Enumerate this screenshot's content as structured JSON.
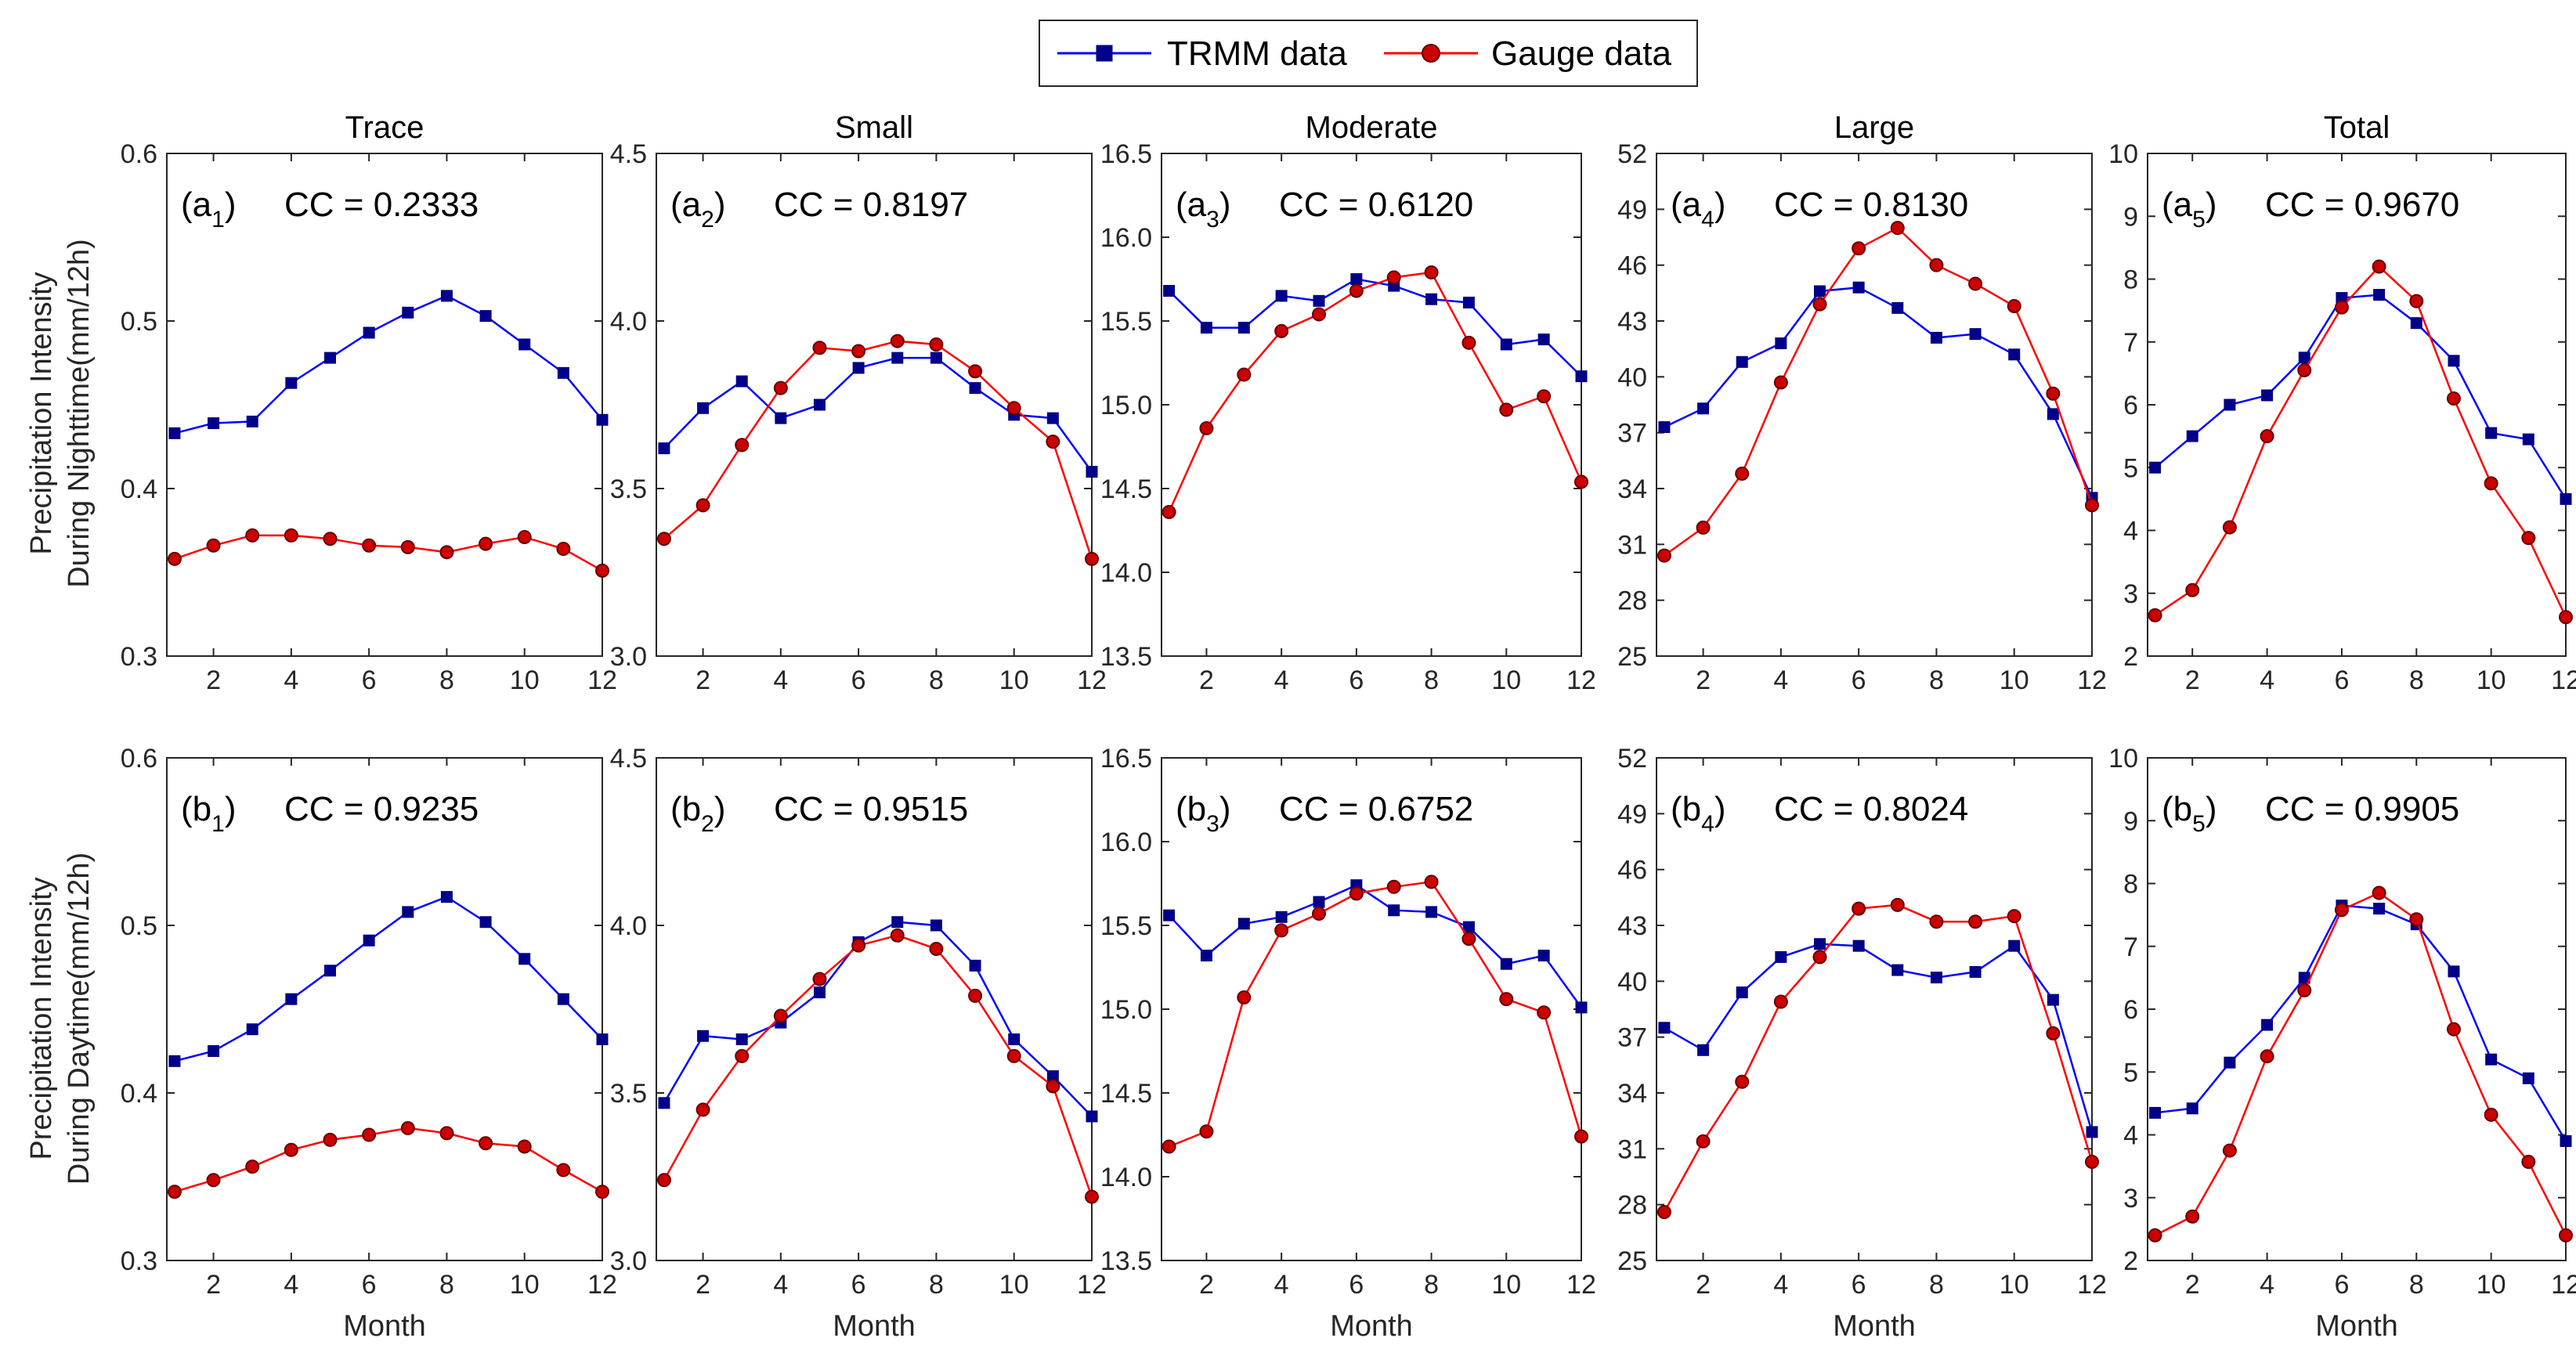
{
  "legend": {
    "trmm_label": "TRMM data",
    "gauge_label": "Gauge data"
  },
  "row_labels": [
    [
      "Precipitation Intensity",
      "During Nighttime(mm/12h)"
    ],
    [
      "Precipitation Intensity",
      "During Daytime(mm/12h)"
    ]
  ],
  "xlabel": "Month",
  "chart_data": {
    "type": "line",
    "categories": [
      1,
      2,
      3,
      4,
      5,
      6,
      7,
      8,
      9,
      10,
      11,
      12
    ],
    "x_ticks": [
      2,
      4,
      6,
      8,
      10,
      12
    ],
    "xlim": [
      0.8,
      12
    ],
    "series_names": [
      "TRMM data",
      "Gauge data"
    ],
    "colors": {
      "trmm": "#0000ff",
      "trmm_marker": "#00008b",
      "gauge": "#ff0000",
      "gauge_marker": "#cc0000"
    },
    "panels": [
      {
        "row": 0,
        "col": 0,
        "title": "Trace",
        "label_base": "a",
        "label_sub": "1",
        "cc": "CC = 0.2333",
        "ylim": [
          0.3,
          0.6
        ],
        "yticks": [
          "0.3",
          "0.4",
          "0.5",
          "0.6"
        ],
        "series": [
          {
            "name": "TRMM data",
            "values": [
              0.433,
              0.439,
              0.44,
              0.463,
              0.478,
              0.493,
              0.505,
              0.515,
              0.503,
              0.486,
              0.469,
              0.441
            ]
          },
          {
            "name": "Gauge data",
            "values": [
              0.358,
              0.366,
              0.372,
              0.372,
              0.37,
              0.366,
              0.365,
              0.362,
              0.367,
              0.371,
              0.364,
              0.351
            ]
          }
        ]
      },
      {
        "row": 0,
        "col": 1,
        "title": "Small",
        "label_base": "a",
        "label_sub": "2",
        "cc": "CC = 0.8197",
        "ylim": [
          3.0,
          4.5
        ],
        "yticks": [
          "3.0",
          "3.5",
          "4.0",
          "4.5"
        ],
        "series": [
          {
            "name": "TRMM data",
            "values": [
              3.62,
              3.74,
              3.82,
              3.71,
              3.75,
              3.86,
              3.89,
              3.89,
              3.8,
              3.72,
              3.71,
              3.55
            ]
          },
          {
            "name": "Gauge data",
            "values": [
              3.35,
              3.45,
              3.63,
              3.8,
              3.92,
              3.91,
              3.94,
              3.93,
              3.85,
              3.74,
              3.64,
              3.29
            ]
          }
        ]
      },
      {
        "row": 0,
        "col": 2,
        "title": "Moderate",
        "label_base": "a",
        "label_sub": "3",
        "cc": "CC = 0.6120",
        "ylim": [
          13.5,
          16.5
        ],
        "yticks": [
          "13.5",
          "14.0",
          "14.5",
          "15.0",
          "15.5",
          "16.0",
          "16.5"
        ],
        "series": [
          {
            "name": "TRMM data",
            "values": [
              15.68,
              15.46,
              15.46,
              15.65,
              15.62,
              15.75,
              15.71,
              15.63,
              15.61,
              15.36,
              15.39,
              15.17
            ]
          },
          {
            "name": "Gauge data",
            "values": [
              14.36,
              14.86,
              15.18,
              15.44,
              15.54,
              15.68,
              15.76,
              15.79,
              15.37,
              14.97,
              15.05,
              14.54
            ]
          }
        ]
      },
      {
        "row": 0,
        "col": 3,
        "title": "Large",
        "label_base": "a",
        "label_sub": "4",
        "cc": "CC = 0.8130",
        "ylim": [
          25,
          52
        ],
        "yticks": [
          "25",
          "28",
          "31",
          "34",
          "37",
          "40",
          "43",
          "46",
          "49",
          "52"
        ],
        "series": [
          {
            "name": "TRMM data",
            "values": [
              37.3,
              38.3,
              40.8,
              41.8,
              44.6,
              44.8,
              43.7,
              42.1,
              42.3,
              41.2,
              38.0,
              33.5
            ]
          },
          {
            "name": "Gauge data",
            "values": [
              30.4,
              31.9,
              34.8,
              39.7,
              43.9,
              46.9,
              48.0,
              46.0,
              45.0,
              43.8,
              39.1,
              33.1
            ]
          }
        ]
      },
      {
        "row": 0,
        "col": 4,
        "title": "Total",
        "label_base": "a",
        "label_sub": "5",
        "cc": "CC = 0.9670",
        "ylim": [
          2,
          10
        ],
        "yticks": [
          "2",
          "3",
          "4",
          "5",
          "6",
          "7",
          "8",
          "9",
          "10"
        ],
        "series": [
          {
            "name": "TRMM data",
            "values": [
              5.0,
              5.5,
              6.0,
              6.15,
              6.75,
              7.7,
              7.75,
              7.3,
              6.7,
              5.55,
              5.45,
              4.5
            ]
          },
          {
            "name": "Gauge data",
            "values": [
              2.65,
              3.05,
              4.05,
              5.5,
              6.55,
              7.55,
              8.2,
              7.65,
              6.1,
              4.75,
              3.88,
              2.62
            ]
          }
        ]
      },
      {
        "row": 1,
        "col": 0,
        "title": "",
        "label_base": "b",
        "label_sub": "1",
        "cc": "CC = 0.9235",
        "ylim": [
          0.3,
          0.6
        ],
        "yticks": [
          "0.3",
          "0.4",
          "0.5",
          "0.6"
        ],
        "series": [
          {
            "name": "TRMM data",
            "values": [
              0.419,
              0.425,
              0.438,
              0.456,
              0.473,
              0.491,
              0.508,
              0.517,
              0.502,
              0.48,
              0.456,
              0.432
            ]
          },
          {
            "name": "Gauge data",
            "values": [
              0.341,
              0.348,
              0.356,
              0.366,
              0.372,
              0.375,
              0.379,
              0.376,
              0.37,
              0.368,
              0.354,
              0.341
            ]
          }
        ]
      },
      {
        "row": 1,
        "col": 1,
        "title": "",
        "label_base": "b",
        "label_sub": "2",
        "cc": "CC = 0.9515",
        "ylim": [
          3.0,
          4.5
        ],
        "yticks": [
          "3.0",
          "3.5",
          "4.0",
          "4.5"
        ],
        "series": [
          {
            "name": "TRMM data",
            "values": [
              3.47,
              3.67,
              3.66,
              3.71,
              3.8,
              3.95,
              4.01,
              4.0,
              3.88,
              3.66,
              3.55,
              3.43
            ]
          },
          {
            "name": "Gauge data",
            "values": [
              3.24,
              3.45,
              3.61,
              3.73,
              3.84,
              3.94,
              3.97,
              3.93,
              3.79,
              3.61,
              3.52,
              3.19
            ]
          }
        ]
      },
      {
        "row": 1,
        "col": 2,
        "title": "",
        "label_base": "b",
        "label_sub": "3",
        "cc": "CC = 0.6752",
        "ylim": [
          13.5,
          16.5
        ],
        "yticks": [
          "13.5",
          "14.0",
          "14.5",
          "15.0",
          "15.5",
          "16.0",
          "16.5"
        ],
        "series": [
          {
            "name": "TRMM data",
            "values": [
              15.56,
              15.32,
              15.51,
              15.55,
              15.64,
              15.74,
              15.59,
              15.58,
              15.49,
              15.27,
              15.32,
              15.01
            ]
          },
          {
            "name": "Gauge data",
            "values": [
              14.18,
              14.27,
              15.07,
              15.47,
              15.57,
              15.69,
              15.73,
              15.76,
              15.42,
              15.06,
              14.98,
              14.24
            ]
          }
        ]
      },
      {
        "row": 1,
        "col": 3,
        "title": "",
        "label_base": "b",
        "label_sub": "4",
        "cc": "CC = 0.8024",
        "ylim": [
          25,
          52
        ],
        "yticks": [
          "25",
          "28",
          "31",
          "34",
          "37",
          "40",
          "43",
          "46",
          "49",
          "52"
        ],
        "series": [
          {
            "name": "TRMM data",
            "values": [
              37.5,
              36.3,
              39.4,
              41.3,
              42.0,
              41.9,
              40.6,
              40.2,
              40.5,
              41.9,
              39.0,
              31.9
            ]
          },
          {
            "name": "Gauge data",
            "values": [
              27.6,
              31.4,
              34.6,
              38.9,
              41.3,
              43.9,
              44.1,
              43.2,
              43.2,
              43.5,
              37.2,
              30.3
            ]
          }
        ]
      },
      {
        "row": 1,
        "col": 4,
        "title": "",
        "label_base": "b",
        "label_sub": "5",
        "cc": "CC = 0.9905",
        "ylim": [
          2,
          10
        ],
        "yticks": [
          "2",
          "3",
          "4",
          "5",
          "6",
          "7",
          "8",
          "9",
          "10"
        ],
        "series": [
          {
            "name": "TRMM data",
            "values": [
              4.35,
              4.42,
              5.15,
              5.75,
              6.5,
              7.65,
              7.6,
              7.35,
              6.6,
              5.2,
              4.9,
              3.9
            ]
          },
          {
            "name": "Gauge data",
            "values": [
              2.4,
              2.7,
              3.75,
              5.25,
              6.3,
              7.58,
              7.85,
              7.43,
              5.68,
              4.32,
              3.57,
              2.4
            ]
          }
        ]
      }
    ]
  }
}
